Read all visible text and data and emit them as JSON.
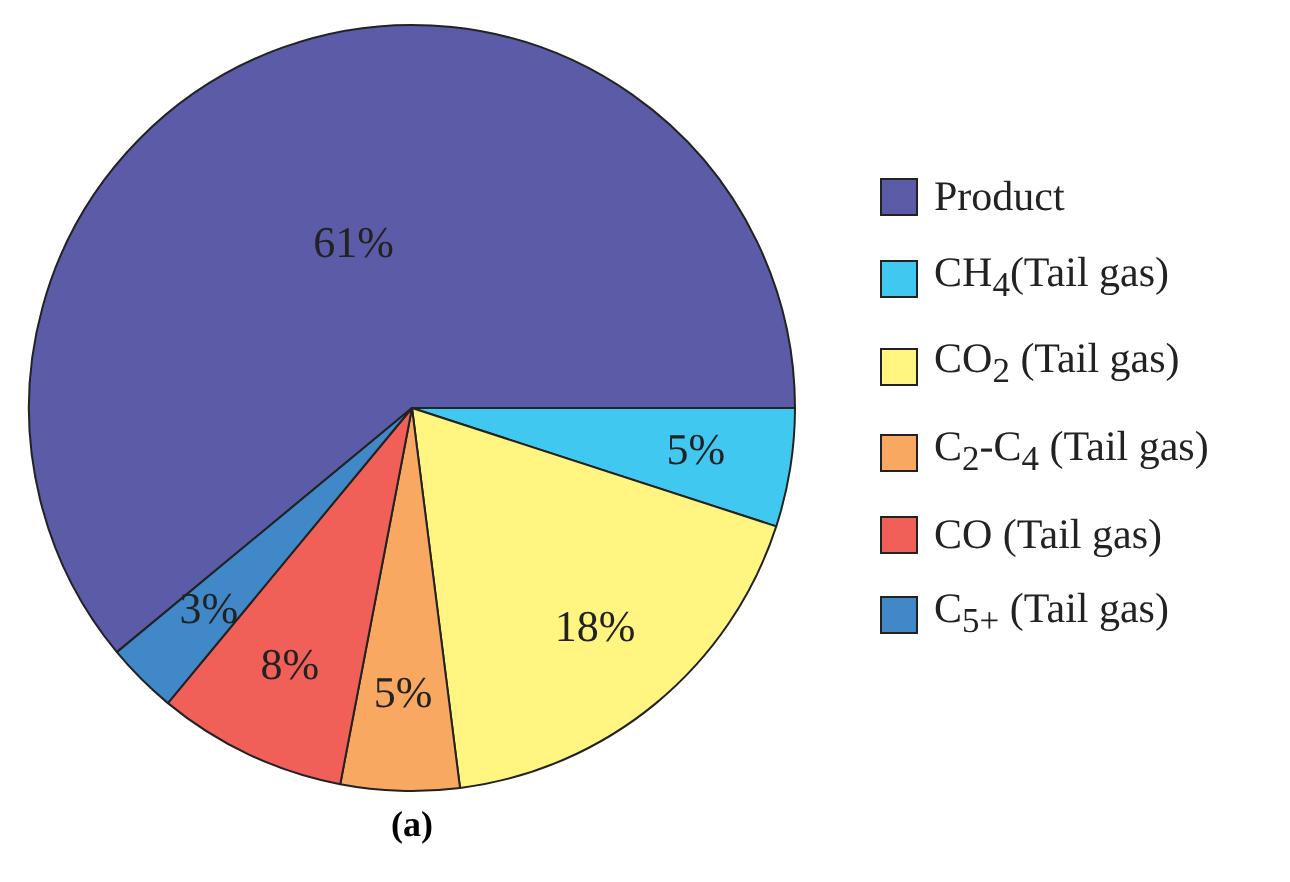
{
  "chart_data": {
    "type": "pie",
    "title": "(a)",
    "categories": [
      "Product",
      "CH$_{4}$(Tail gas)",
      "CO$_{2}$ (Tail gas)",
      "C$_{2}$-C$_{4}$ (Tail gas)",
      "CO (Tail gas)",
      "C$_{5+}$ (Tail gas)"
    ],
    "values": [
      61,
      5,
      18,
      5,
      8,
      3
    ],
    "colors": [
      "#5b5ba8",
      "#40c8f0",
      "#fff580",
      "#f8a860",
      "#f06058",
      "#4088c8"
    ],
    "value_labels": [
      "61%",
      "5%",
      "18%",
      "5%",
      "8%",
      "3%"
    ],
    "legend": "right"
  }
}
